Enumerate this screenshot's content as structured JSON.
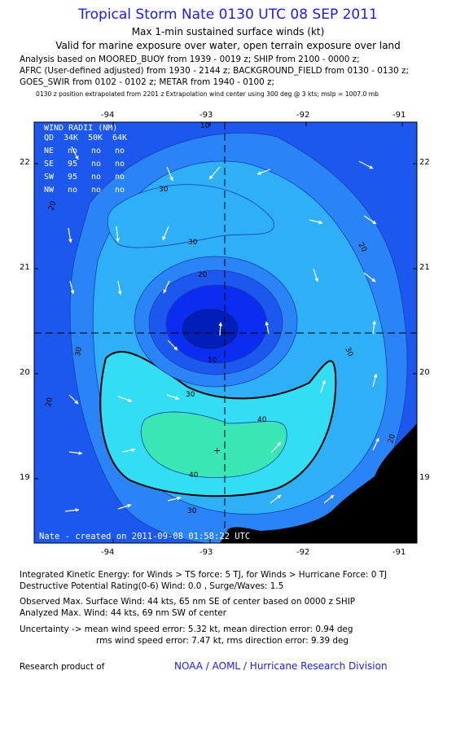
{
  "header": {
    "title": "Tropical Storm Nate 0130 UTC 08 SEP 2011",
    "subtitle_1": "Max 1-min sustained surface winds (kt)",
    "subtitle_2": "Valid for marine exposure over water, open terrain exposure over land",
    "analysis_lines": [
      "Analysis based on MOORED_BUOY from 1939 - 0019 z; SHIP from 2100 - 0000 z;",
      "AFRC (User-defined adjusted) from 1930 - 2144 z; BACKGROUND_FIELD from 0130 - 0130 z;",
      "GOES_SWIR from 0102 - 0102 z; METAR from 1940 - 0100 z;"
    ],
    "position_note": "0130 z position extrapolated from 2201 z Extrapolation wind center using 300 deg @ 3 kts; mslp = 1007.0 mb"
  },
  "map": {
    "lon_ticks": [
      "-94",
      "-93",
      "-92",
      "-91"
    ],
    "lat_ticks": [
      "22",
      "21",
      "20",
      "19"
    ],
    "contour_labels": [
      "10",
      "20",
      "30",
      "40"
    ],
    "contour_levels_kt": [
      10,
      20,
      30,
      34,
      40
    ],
    "storm_center": {
      "lon": -93.0,
      "lat": 20.4
    },
    "max_wind_marker": {
      "lon": -93.1,
      "lat": 19.5
    },
    "colors": {
      "weak": "#1c57ee",
      "light": "#2a84f5",
      "mid": "#2fb0f6",
      "strong": "#33ddf3",
      "strongest": "#39e6b4",
      "core": "#0b2df0",
      "eye": "#001fb8",
      "land": "#000000"
    },
    "legend": {
      "title": "WIND RADII (NM)",
      "header": [
        "QD",
        "34K",
        "50K",
        "64K"
      ],
      "rows": [
        {
          "q": "NE",
          "v34": "no",
          "v50": "no",
          "v64": "no"
        },
        {
          "q": "SE",
          "v34": "95",
          "v50": "no",
          "v64": "no"
        },
        {
          "q": "SW",
          "v34": "95",
          "v50": "no",
          "v64": "no"
        },
        {
          "q": "NW",
          "v34": "no",
          "v50": "no",
          "v64": "no"
        }
      ]
    },
    "credit_line": "Nate - created on 2011-09-08 01:58:22 UTC"
  },
  "stats": {
    "ike": "Integrated Kinetic Energy:  for Winds > TS force: 5 TJ,  for Winds > Hurricane Force: 0 TJ",
    "dpr": "Destructive Potential Rating(0-6)   Wind: 0.0 , Surge/Waves: 1.5",
    "observed_max": "Observed Max. Surface Wind: 44 kts, 65 nm SE of center based on 0000 z SHIP",
    "analyzed_max": "Analyzed Max. Wind: 44 kts, 69 nm SW of center",
    "uncertainty_1": "Uncertainty -> mean wind speed error: 5.32 kt,   mean direction error: 0.94 deg",
    "uncertainty_2": "rms wind speed error: 7.47 kt,   rms direction error: 9.39 deg"
  },
  "footer": {
    "research_label": "Research product of",
    "org": "NOAA / AOML / Hurricane Research Division"
  }
}
